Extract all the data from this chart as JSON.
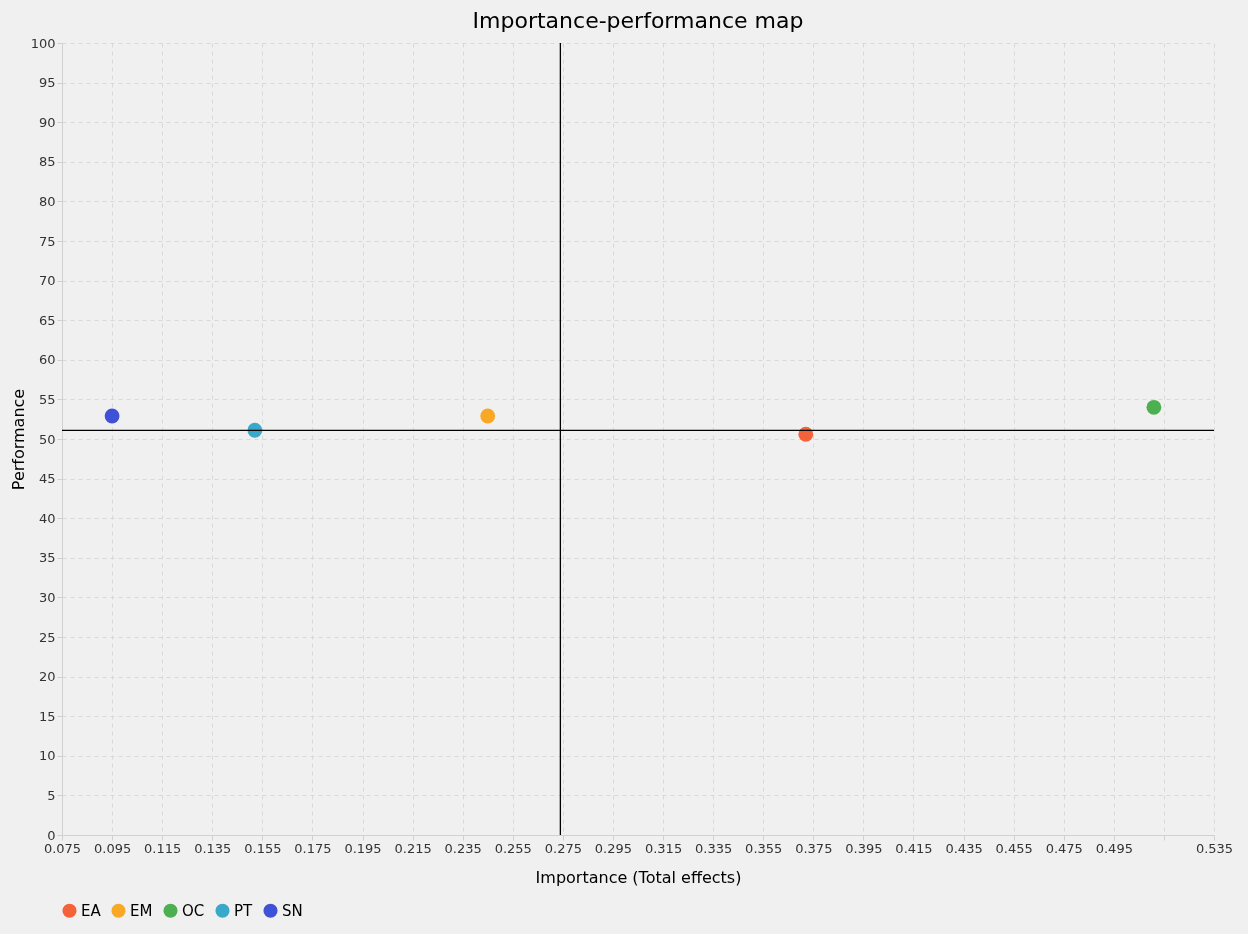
{
  "chart_data": {
    "type": "scatter",
    "title": "Importance-performance map",
    "xlabel": "Importance (Total effects)",
    "ylabel": "Performance",
    "series": [
      {
        "name": "EA",
        "color": "#f4623a",
        "x": [
          0.372
        ],
        "values": [
          50.6
        ]
      },
      {
        "name": "EM",
        "color": "#f9a825",
        "x": [
          0.245
        ],
        "values": [
          52.9
        ]
      },
      {
        "name": "OC",
        "color": "#4caf50",
        "x": [
          0.511
        ],
        "values": [
          54.0
        ]
      },
      {
        "name": "PT",
        "color": "#3aa8c9",
        "x": [
          0.152
        ],
        "values": [
          51.1
        ]
      },
      {
        "name": "SN",
        "color": "#3f51d6",
        "x": [
          0.095
        ],
        "values": [
          52.9
        ]
      }
    ],
    "xlim": [
      0.075,
      0.535
    ],
    "xticks": [
      0.075,
      0.095,
      0.115,
      0.135,
      0.155,
      0.175,
      0.195,
      0.215,
      0.235,
      0.255,
      0.275,
      0.295,
      0.315,
      0.335,
      0.355,
      0.375,
      0.395,
      0.415,
      0.435,
      0.455,
      0.475,
      0.495,
      {
        "value": 0.515,
        "label": null
      },
      0.535
    ],
    "ylim": [
      0,
      100
    ],
    "yticks": [
      0,
      5,
      10,
      15,
      20,
      25,
      30,
      35,
      40,
      45,
      50,
      55,
      60,
      65,
      70,
      75,
      80,
      85,
      90,
      95,
      100
    ],
    "ref_lines": [
      {
        "axis": "x",
        "value": 0.274,
        "color": "#000000"
      },
      {
        "axis": "y",
        "value": 51.1,
        "color": "#000000"
      }
    ],
    "grid": true,
    "legend": "bottom",
    "marker": "circle"
  }
}
